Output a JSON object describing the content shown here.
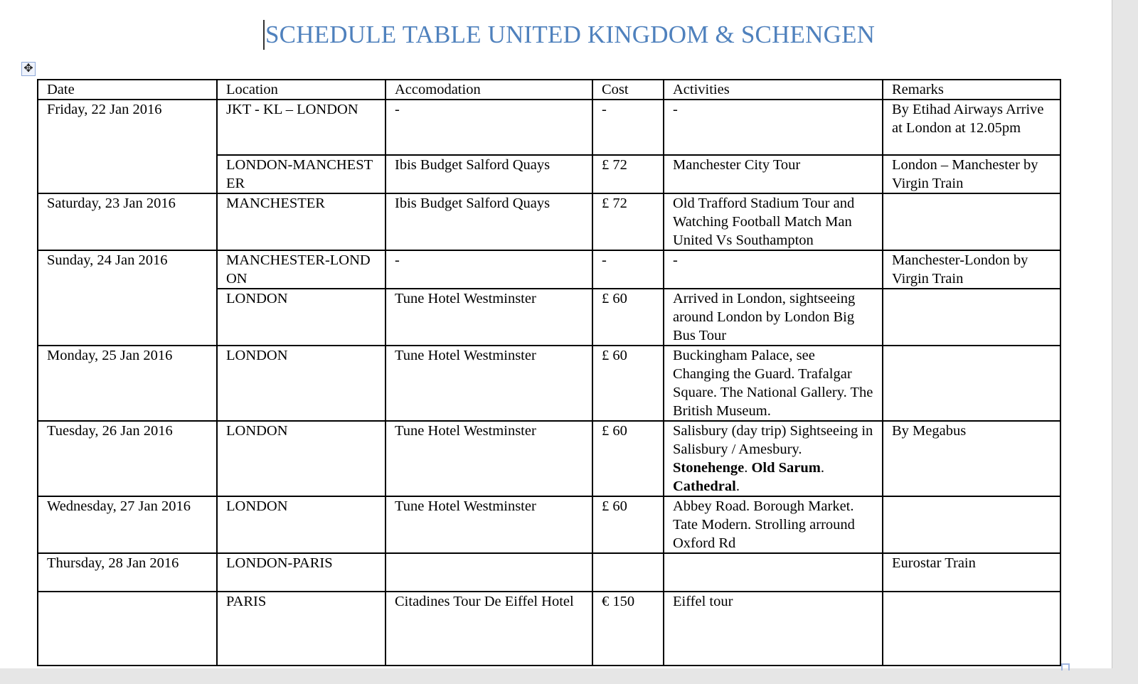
{
  "title": "SCHEDULE TABLE UNITED KINGDOM & SCHENGEN",
  "icons": {
    "move_handle": "move-arrows-icon"
  },
  "table": {
    "headers": [
      "Date",
      "Location",
      "Accomodation",
      "Cost",
      "Activities",
      "Remarks"
    ],
    "rows": [
      {
        "date": "Friday, 22 Jan 2016",
        "location": "JKT - KL – LONDON",
        "accommodation": "-",
        "cost": "-",
        "activities": "-",
        "remarks": "By Etihad Airways Arrive at London at 12.05pm"
      },
      {
        "date": "",
        "location": "LONDON-MANCHESTER",
        "accommodation": "Ibis Budget Salford Quays",
        "cost": "£ 72",
        "activities": "Manchester City Tour",
        "remarks": "London – Manchester by Virgin Train"
      },
      {
        "date": "Saturday, 23 Jan 2016",
        "location": "MANCHESTER",
        "accommodation": "Ibis Budget Salford Quays",
        "cost": "£ 72",
        "activities": "Old Trafford Stadium Tour and Watching Football Match Man United Vs Southampton",
        "remarks": ""
      },
      {
        "date": "Sunday, 24 Jan 2016",
        "location": "MANCHESTER-LONDON",
        "accommodation": "-",
        "cost": "-",
        "activities": "-",
        "remarks": "Manchester-London by Virgin Train"
      },
      {
        "date": "",
        "location": "LONDON",
        "accommodation": "Tune Hotel Westminster",
        "cost": "£ 60",
        "activities": "Arrived in London, sightseeing around London by London Big Bus Tour",
        "remarks": ""
      },
      {
        "date": "Monday, 25 Jan 2016",
        "location": "LONDON",
        "accommodation": "Tune Hotel Westminster",
        "cost": "£ 60",
        "activities": "Buckingham Palace, see Changing the Guard. Trafalgar Square. The National Gallery. The British Museum.",
        "remarks": ""
      },
      {
        "date": "Tuesday, 26 Jan 2016",
        "location": "LONDON",
        "accommodation": "Tune Hotel Westminster",
        "cost": "£ 60",
        "activities_parts": [
          "Salisbury (day trip) Sightseeing in Salisbury / Amesbury. ",
          "Stonehenge",
          ". ",
          "Old Sarum",
          ". ",
          "Cathedral",
          "."
        ],
        "remarks": "By Megabus"
      },
      {
        "date": "Wednesday, 27 Jan 2016",
        "location": "LONDON",
        "accommodation": "Tune Hotel Westminster",
        "cost": "£ 60",
        "activities": "Abbey Road. Borough Market. Tate Modern.  Strolling arround Oxford Rd",
        "remarks": ""
      },
      {
        "date": "Thursday, 28 Jan 2016",
        "location": "LONDON-PARIS",
        "accommodation": "",
        "cost": "",
        "activities": "",
        "remarks": "Eurostar Train"
      },
      {
        "date": "",
        "location": "PARIS",
        "accommodation": "Citadines Tour De Eiffel Hotel",
        "cost": "€ 150",
        "activities": "Eiffel tour",
        "remarks": ""
      }
    ]
  }
}
